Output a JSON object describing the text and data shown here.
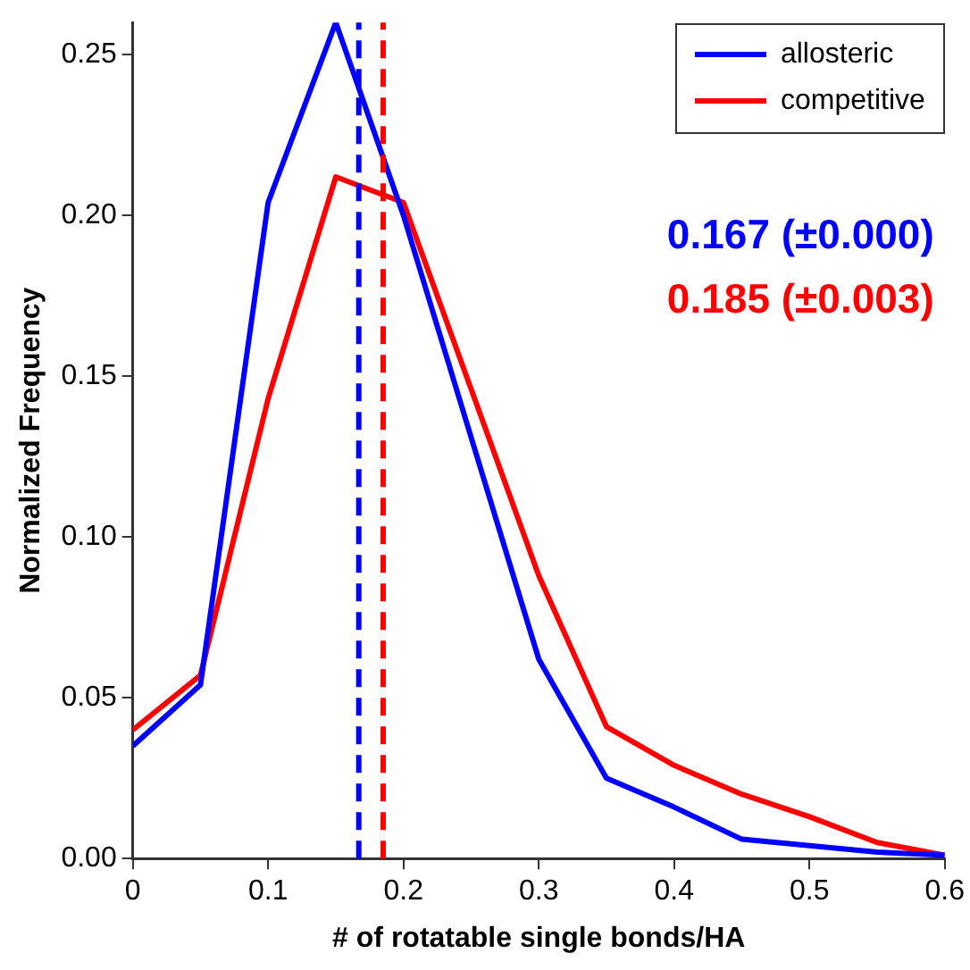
{
  "chart_data": {
    "type": "line",
    "xlabel": "# of rotatable single bonds/HA",
    "ylabel": "Normalized Frequency",
    "xlim": [
      0,
      0.6
    ],
    "xticks": [
      0,
      0.1,
      0.2,
      0.3,
      0.4,
      0.5,
      0.6
    ],
    "ylim": [
      0,
      0.26
    ],
    "yticks": [
      {
        "value": 0,
        "label": "0.00"
      },
      {
        "value": 0.05,
        "label": "0.05"
      },
      {
        "value": 0.1,
        "label": "0.10"
      },
      {
        "value": 0.15,
        "label": "0.15"
      },
      {
        "value": 0.2,
        "label": "0.20"
      },
      {
        "value": 0.25,
        "label": "0.25"
      }
    ],
    "x": [
      0,
      0.05,
      0.1,
      0.15,
      0.2,
      0.3,
      0.35,
      0.4,
      0.45,
      0.5,
      0.55,
      0.6
    ],
    "series": [
      {
        "name": "allosteric",
        "color": "#0000ff",
        "values": [
          0.035,
          0.054,
          0.204,
          0.26,
          0.2,
          0.062,
          0.025,
          0.016,
          0.006,
          0.004,
          0.002,
          0.001
        ]
      },
      {
        "name": "competitive",
        "color": "#ff0000",
        "values": [
          0.04,
          0.057,
          0.143,
          0.212,
          0.204,
          0.088,
          0.041,
          0.029,
          0.02,
          0.013,
          0.005,
          0.001
        ]
      }
    ],
    "ref_lines": [
      {
        "axis": "x",
        "value": 0.167,
        "label": "0.167 (±0.000)",
        "color": "#0000ff",
        "line_style": "dashed"
      },
      {
        "axis": "x",
        "value": 0.185,
        "label": "0.185 (±0.003)",
        "color": "#ff0000",
        "line_style": "dashed"
      }
    ],
    "legend": "top right",
    "grid": false,
    "marker": "none",
    "line_style": "solid"
  }
}
